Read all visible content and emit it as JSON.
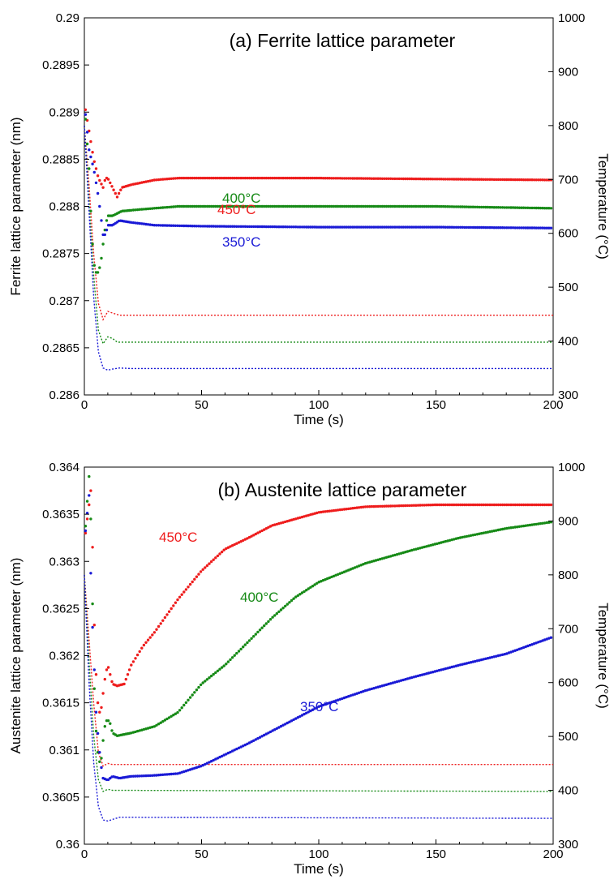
{
  "colors": {
    "450": "#ee1c1c",
    "400": "#168a16",
    "350": "#1a1ad6",
    "axis": "#000000"
  },
  "chart_data": [
    {
      "type": "scatter",
      "title": "(a) Ferrite lattice parameter",
      "xlabel": "Time (s)",
      "ylabel": "Ferrite lattice parameter (nm)",
      "y2label": "Temperature (°C)",
      "xlim": [
        0,
        200
      ],
      "ylim": [
        0.286,
        0.29
      ],
      "y2lim": [
        300,
        1000
      ],
      "xticks": [
        "0",
        "50",
        "100",
        "150",
        "200"
      ],
      "yticks": [
        "0.286",
        "0.2865",
        "0.287",
        "0.2875",
        "0.288",
        "0.2885",
        "0.289",
        "0.2895",
        "0.29"
      ],
      "y2ticks": [
        "300",
        "400",
        "500",
        "600",
        "700",
        "800",
        "900",
        "1000"
      ],
      "grid": false,
      "series": [
        {
          "name": "450°C",
          "color_key": "450",
          "lattice": [
            [
              0,
              0.2891
            ],
            [
              2,
              0.2888
            ],
            [
              4,
              0.2885
            ],
            [
              6,
              0.2883
            ],
            [
              8,
              0.2882
            ],
            [
              9,
              0.2883
            ],
            [
              10,
              0.2883
            ],
            [
              12,
              0.2882
            ],
            [
              14,
              0.2881
            ],
            [
              16,
              0.2882
            ],
            [
              20,
              0.28823
            ],
            [
              30,
              0.28828
            ],
            [
              40,
              0.2883
            ],
            [
              60,
              0.2883
            ],
            [
              100,
              0.2883
            ],
            [
              150,
              0.28829
            ],
            [
              200,
              0.28828
            ]
          ],
          "temperature": [
            [
              0,
              800
            ],
            [
              2,
              690
            ],
            [
              4,
              560
            ],
            [
              6,
              470
            ],
            [
              8,
              440
            ],
            [
              10,
              455
            ],
            [
              12,
              452
            ],
            [
              15,
              448
            ],
            [
              20,
              448
            ],
            [
              200,
              448
            ]
          ]
        },
        {
          "name": "400°C",
          "color_key": "400",
          "lattice": [
            [
              0,
              0.2891
            ],
            [
              2,
              0.2884
            ],
            [
              3,
              0.2878
            ],
            [
              4,
              0.2874
            ],
            [
              5,
              0.2873
            ],
            [
              6,
              0.2873
            ],
            [
              7,
              0.2874
            ],
            [
              8,
              0.2876
            ],
            [
              9,
              0.2878
            ],
            [
              10,
              0.2879
            ],
            [
              12,
              0.2879
            ],
            [
              16,
              0.28795
            ],
            [
              25,
              0.28797
            ],
            [
              40,
              0.288
            ],
            [
              100,
              0.288
            ],
            [
              150,
              0.288
            ],
            [
              200,
              0.28798
            ]
          ],
          "temperature": [
            [
              0,
              800
            ],
            [
              2,
              660
            ],
            [
              4,
              520
            ],
            [
              6,
              420
            ],
            [
              8,
              395
            ],
            [
              10,
              408
            ],
            [
              12,
              405
            ],
            [
              14,
              398
            ],
            [
              20,
              398
            ],
            [
              200,
              398
            ]
          ]
        },
        {
          "name": "350°C",
          "color_key": "350",
          "lattice": [
            [
              0,
              0.2891
            ],
            [
              2,
              0.2886
            ],
            [
              4,
              0.2884
            ],
            [
              6,
              0.2881
            ],
            [
              8,
              0.2877
            ],
            [
              9,
              0.2877
            ],
            [
              10,
              0.2878
            ],
            [
              12,
              0.2878
            ],
            [
              15,
              0.28785
            ],
            [
              20,
              0.28783
            ],
            [
              30,
              0.2878
            ],
            [
              50,
              0.28779
            ],
            [
              100,
              0.28778
            ],
            [
              150,
              0.28778
            ],
            [
              200,
              0.28777
            ]
          ],
          "temperature": [
            [
              0,
              800
            ],
            [
              2,
              640
            ],
            [
              4,
              480
            ],
            [
              6,
              380
            ],
            [
              8,
              350
            ],
            [
              10,
              346
            ],
            [
              12,
              348
            ],
            [
              15,
              350
            ],
            [
              20,
              349
            ],
            [
              200,
              349
            ]
          ]
        }
      ],
      "annotations": [
        {
          "series": "450",
          "text": "450°C"
        },
        {
          "series": "400",
          "text": "400°C"
        },
        {
          "series": "350",
          "text": "350°C"
        }
      ]
    },
    {
      "type": "scatter",
      "title": "(b) Austenite lattice parameter",
      "xlabel": "Time (s)",
      "ylabel": "Austenite lattice parameter (nm)",
      "y2label": "Temperature (°C)",
      "xlim": [
        0,
        200
      ],
      "ylim": [
        0.36,
        0.364
      ],
      "y2lim": [
        300,
        1000
      ],
      "xticks": [
        "0",
        "50",
        "100",
        "150",
        "200"
      ],
      "yticks": [
        "0.36",
        "0.3605",
        "0.361",
        "0.3615",
        "0.362",
        "0.3625",
        "0.363",
        "0.3635",
        "0.364"
      ],
      "y2ticks": [
        "300",
        "400",
        "500",
        "600",
        "700",
        "800",
        "900",
        "1000"
      ],
      "grid": false,
      "series": [
        {
          "name": "450°C",
          "color_key": "450",
          "lattice": [
            [
              0,
              0.3632
            ],
            [
              3,
              0.3638
            ],
            [
              4,
              0.3625
            ],
            [
              5,
              0.3618
            ],
            [
              6,
              0.3614
            ],
            [
              7,
              0.3614
            ],
            [
              8,
              0.3616
            ],
            [
              9,
              0.3618
            ],
            [
              10,
              0.3619
            ],
            [
              11,
              0.3618
            ],
            [
              12,
              0.3617
            ],
            [
              14,
              0.36168
            ],
            [
              17,
              0.3617
            ],
            [
              20,
              0.3619
            ],
            [
              25,
              0.3621
            ],
            [
              30,
              0.36225
            ],
            [
              40,
              0.3626
            ],
            [
              50,
              0.3629
            ],
            [
              60,
              0.36313
            ],
            [
              70,
              0.36325
            ],
            [
              80,
              0.36338
            ],
            [
              100,
              0.36352
            ],
            [
              120,
              0.36358
            ],
            [
              150,
              0.3636
            ],
            [
              200,
              0.3636
            ]
          ],
          "temperature": [
            [
              0,
              800
            ],
            [
              2,
              680
            ],
            [
              4,
              560
            ],
            [
              6,
              470
            ],
            [
              8,
              445
            ],
            [
              10,
              450
            ],
            [
              12,
              448
            ],
            [
              200,
              448
            ]
          ]
        },
        {
          "name": "400°C",
          "color_key": "400",
          "lattice": [
            [
              0,
              0.3632
            ],
            [
              2,
              0.3639
            ],
            [
              3,
              0.3633
            ],
            [
              4,
              0.3618
            ],
            [
              5,
              0.3612
            ],
            [
              6,
              0.3609
            ],
            [
              7,
              0.36085
            ],
            [
              8,
              0.3611
            ],
            [
              9,
              0.3613
            ],
            [
              10,
              0.36132
            ],
            [
              11,
              0.36128
            ],
            [
              12,
              0.36118
            ],
            [
              14,
              0.36115
            ],
            [
              20,
              0.36118
            ],
            [
              30,
              0.36125
            ],
            [
              40,
              0.3614
            ],
            [
              50,
              0.3617
            ],
            [
              60,
              0.3619
            ],
            [
              70,
              0.36215
            ],
            [
              80,
              0.3624
            ],
            [
              90,
              0.36262
            ],
            [
              100,
              0.36278
            ],
            [
              120,
              0.36298
            ],
            [
              140,
              0.36312
            ],
            [
              160,
              0.36325
            ],
            [
              180,
              0.36335
            ],
            [
              200,
              0.36342
            ]
          ],
          "temperature": [
            [
              0,
              800
            ],
            [
              2,
              640
            ],
            [
              4,
              500
            ],
            [
              6,
              420
            ],
            [
              8,
              398
            ],
            [
              10,
              402
            ],
            [
              12,
              400
            ],
            [
              200,
              398
            ]
          ]
        },
        {
          "name": "350°C",
          "color_key": "350",
          "lattice": [
            [
              0,
              0.3632
            ],
            [
              2,
              0.3637
            ],
            [
              3,
              0.3626
            ],
            [
              4,
              0.362
            ],
            [
              5,
              0.3614
            ],
            [
              6,
              0.3611
            ],
            [
              7,
              0.36085
            ],
            [
              8,
              0.3607
            ],
            [
              10,
              0.36068
            ],
            [
              12,
              0.36072
            ],
            [
              15,
              0.3607
            ],
            [
              20,
              0.36072
            ],
            [
              30,
              0.36073
            ],
            [
              40,
              0.36075
            ],
            [
              50,
              0.36083
            ],
            [
              60,
              0.36095
            ],
            [
              70,
              0.36107
            ],
            [
              80,
              0.3612
            ],
            [
              90,
              0.36133
            ],
            [
              100,
              0.36146
            ],
            [
              120,
              0.36163
            ],
            [
              140,
              0.36177
            ],
            [
              160,
              0.3619
            ],
            [
              180,
              0.36202
            ],
            [
              200,
              0.3622
            ]
          ],
          "temperature": [
            [
              0,
              800
            ],
            [
              2,
              600
            ],
            [
              4,
              450
            ],
            [
              6,
              370
            ],
            [
              8,
              345
            ],
            [
              10,
              343
            ],
            [
              12,
              346
            ],
            [
              15,
              350
            ],
            [
              200,
              348
            ]
          ]
        }
      ],
      "annotations": [
        {
          "series": "450",
          "text": "450°C"
        },
        {
          "series": "400",
          "text": "400°C"
        },
        {
          "series": "350",
          "text": "350°C"
        }
      ]
    }
  ]
}
